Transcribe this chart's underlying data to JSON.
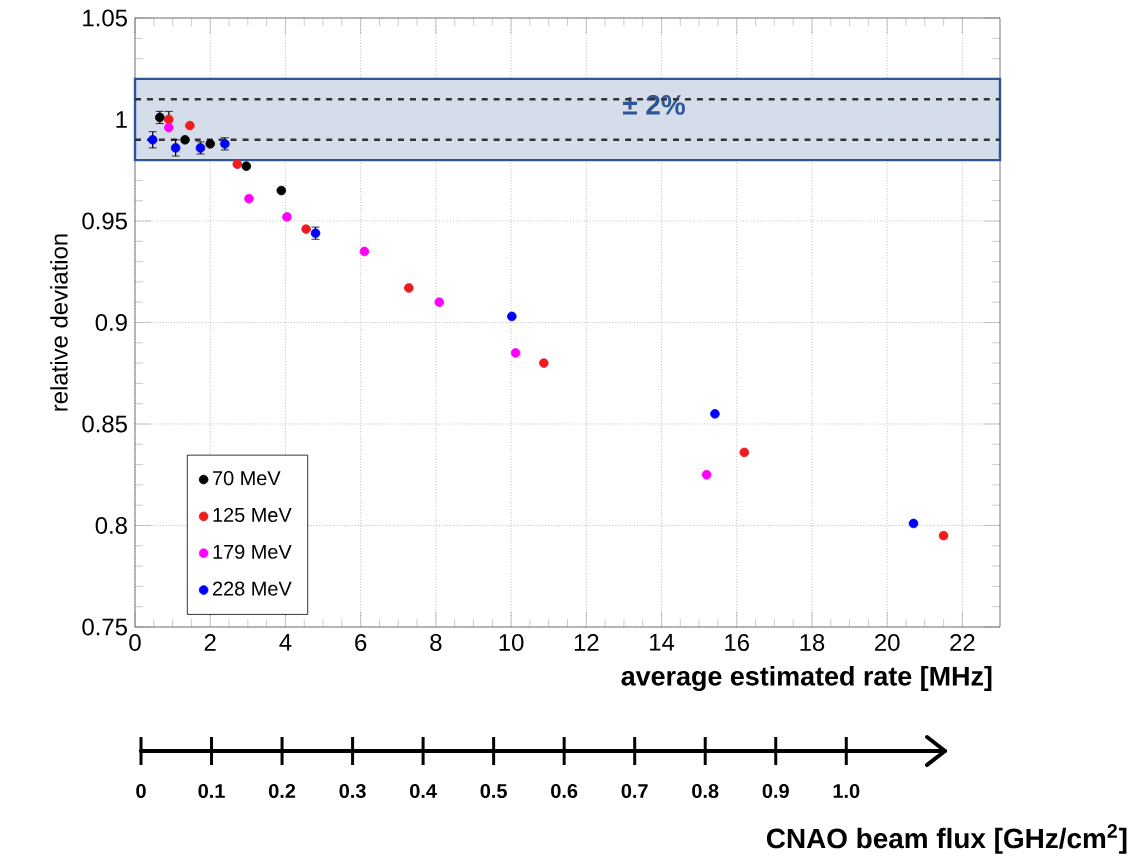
{
  "chart_data": {
    "type": "scatter",
    "xlabel": "average estimated rate [MHz]",
    "ylabel": "relative deviation",
    "x2label": "CNAO beam flux [GHz/cm$^{2}$]",
    "xlim": [
      0,
      23
    ],
    "xticks": [
      0,
      2,
      4,
      6,
      8,
      10,
      12,
      14,
      16,
      18,
      20,
      22
    ],
    "ylim": [
      0.75,
      1.05
    ],
    "yticks": [
      0.75,
      0.8,
      0.85,
      0.9,
      0.95,
      1,
      1.05
    ],
    "x2lim": [
      0,
      1.14
    ],
    "x2ticks": [
      0,
      0.1,
      0.2,
      0.3,
      0.4,
      0.5,
      0.6,
      0.7,
      0.8,
      0.9,
      {
        "value": 1,
        "label": "1.0"
      }
    ],
    "grid": true,
    "legend": "bottom left",
    "marker": "circle",
    "bands": [
      {
        "axis": "y",
        "from": 0.98,
        "to": 1.02,
        "label": "± 2%",
        "color": "#d5dcea"
      }
    ],
    "ref_lines": [
      {
        "axis": "y",
        "value": 1.01,
        "label": null,
        "line_style": "dashed"
      },
      {
        "axis": "y",
        "value": 0.99,
        "label": null,
        "line_style": "dashed"
      }
    ],
    "series": [
      {
        "name": "70 MeV",
        "color": "#000000",
        "x": [
          0.66,
          1.33,
          2.0,
          2.96,
          3.89
        ],
        "values": [
          1.001,
          0.99,
          0.988,
          0.977,
          0.965
        ],
        "errors": [
          0.003,
          null,
          null,
          null,
          null
        ]
      },
      {
        "name": "125 MeV",
        "color": "#ee1c1c",
        "x": [
          0.9,
          1.46,
          2.72,
          4.55,
          7.28,
          10.87,
          16.2,
          21.5
        ],
        "values": [
          1.0,
          0.997,
          0.978,
          0.946,
          0.917,
          0.88,
          0.836,
          0.795
        ],
        "errors": [
          0.004,
          null,
          null,
          null,
          null,
          null,
          null,
          null
        ]
      },
      {
        "name": "179 MeV",
        "color": "#ff00ff",
        "x": [
          0.9,
          3.03,
          4.04,
          6.1,
          8.09,
          10.12,
          15.2
        ],
        "values": [
          0.996,
          0.961,
          0.952,
          0.935,
          0.91,
          0.885,
          0.825
        ]
      },
      {
        "name": "228 MeV",
        "color": "#0000ff",
        "x": [
          0.47,
          1.08,
          1.74,
          2.39,
          4.8,
          10.02,
          15.42,
          20.7
        ],
        "values": [
          0.99,
          0.986,
          0.986,
          0.988,
          0.944,
          0.903,
          0.855,
          0.801
        ],
        "errors": [
          0.004,
          0.004,
          0.003,
          0.003,
          0.003,
          null,
          null,
          null
        ]
      }
    ]
  }
}
